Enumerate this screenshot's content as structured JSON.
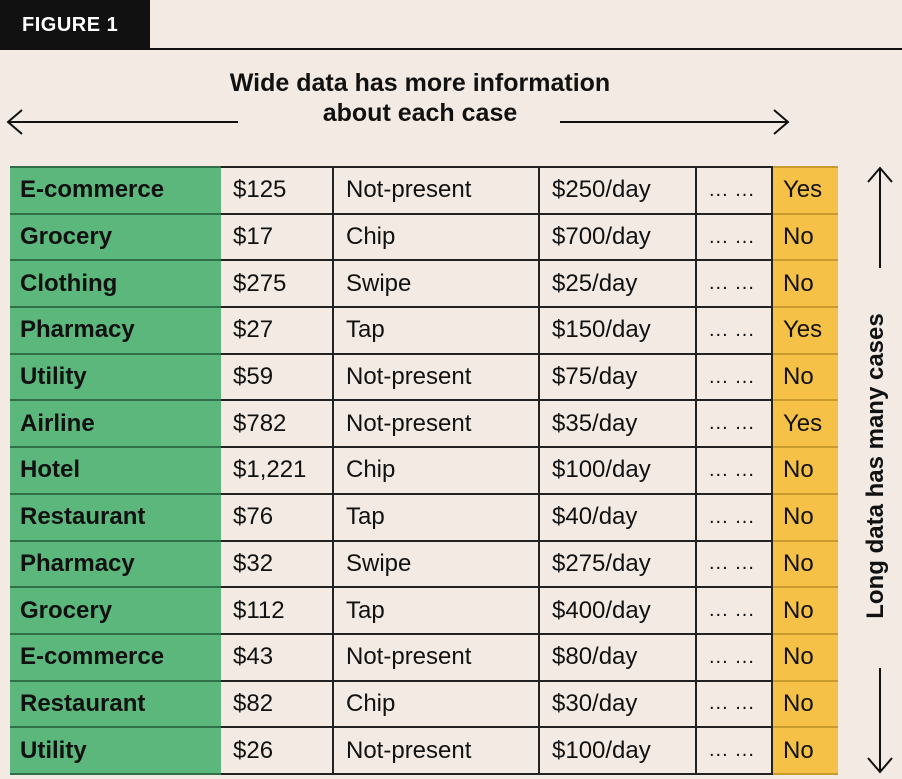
{
  "figure_label": "FIGURE 1",
  "title_line1": "Wide data has more information",
  "title_line2": "about each case",
  "side_label": "Long data has many cases",
  "colors": {
    "category": "#5cb77c",
    "flag": "#f5c247",
    "background": "#f3ebe3",
    "badge": "#111111"
  },
  "rows": [
    {
      "category": "E-commerce",
      "amount": "$125",
      "method": "Not-present",
      "rate": "$250/day",
      "more": "... ...",
      "flag": "Yes"
    },
    {
      "category": "Grocery",
      "amount": "$17",
      "method": "Chip",
      "rate": "$700/day",
      "more": "... ...",
      "flag": "No"
    },
    {
      "category": "Clothing",
      "amount": "$275",
      "method": "Swipe",
      "rate": "$25/day",
      "more": "... ...",
      "flag": "No"
    },
    {
      "category": "Pharmacy",
      "amount": "$27",
      "method": "Tap",
      "rate": "$150/day",
      "more": "... ...",
      "flag": "Yes"
    },
    {
      "category": "Utility",
      "amount": "$59",
      "method": "Not-present",
      "rate": "$75/day",
      "more": "... ...",
      "flag": "No"
    },
    {
      "category": "Airline",
      "amount": "$782",
      "method": "Not-present",
      "rate": "$35/day",
      "more": "... ...",
      "flag": "Yes"
    },
    {
      "category": "Hotel",
      "amount": "$1,221",
      "method": "Chip",
      "rate": "$100/day",
      "more": "... ...",
      "flag": "No"
    },
    {
      "category": "Restaurant",
      "amount": "$76",
      "method": "Tap",
      "rate": "$40/day",
      "more": "... ...",
      "flag": "No"
    },
    {
      "category": "Pharmacy",
      "amount": "$32",
      "method": "Swipe",
      "rate": "$275/day",
      "more": "... ...",
      "flag": "No"
    },
    {
      "category": "Grocery",
      "amount": "$112",
      "method": "Tap",
      "rate": "$400/day",
      "more": "... ...",
      "flag": "No"
    },
    {
      "category": "E-commerce",
      "amount": "$43",
      "method": "Not-present",
      "rate": "$80/day",
      "more": "... ...",
      "flag": "No"
    },
    {
      "category": "Restaurant",
      "amount": "$82",
      "method": "Chip",
      "rate": "$30/day",
      "more": "... ...",
      "flag": "No"
    },
    {
      "category": "Utility",
      "amount": "$26",
      "method": "Not-present",
      "rate": "$100/day",
      "more": "... ...",
      "flag": "No"
    }
  ]
}
